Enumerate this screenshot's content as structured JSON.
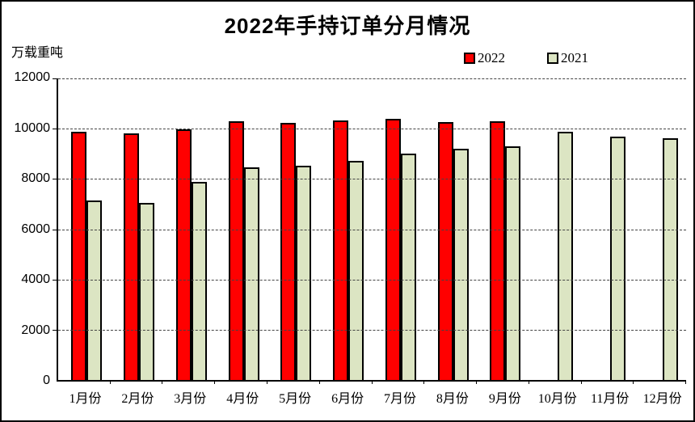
{
  "chart": {
    "title": "2022年手持订单分月情况",
    "unit_label": "万载重吨",
    "legend": {
      "items": [
        {
          "label": "2022",
          "color": "#FF0000"
        },
        {
          "label": "2021",
          "color": "#DCE5C3"
        }
      ]
    }
  },
  "chart_data": {
    "type": "bar",
    "title": "2022年手持订单分月情况",
    "ylabel": "万载重吨",
    "xlabel": "",
    "categories": [
      "1月份",
      "2月份",
      "3月份",
      "4月份",
      "5月份",
      "6月份",
      "7月份",
      "8月份",
      "9月份",
      "10月份",
      "11月份",
      "12月份"
    ],
    "series": [
      {
        "name": "2022",
        "color": "#FF0000",
        "values": [
          9820,
          9770,
          9930,
          10230,
          10190,
          10280,
          10350,
          10210,
          10250,
          null,
          null,
          null
        ]
      },
      {
        "name": "2021",
        "color": "#DCE5C3",
        "values": [
          7090,
          7010,
          7840,
          8420,
          8480,
          8660,
          8950,
          9140,
          9250,
          9820,
          9630,
          9580
        ]
      }
    ],
    "ylim": [
      0,
      12000
    ],
    "ytick_interval": 2000,
    "yticks": [
      0,
      2000,
      4000,
      6000,
      8000,
      10000,
      12000
    ],
    "grid": "horizontal-dashed",
    "legend_position": "top-right"
  }
}
